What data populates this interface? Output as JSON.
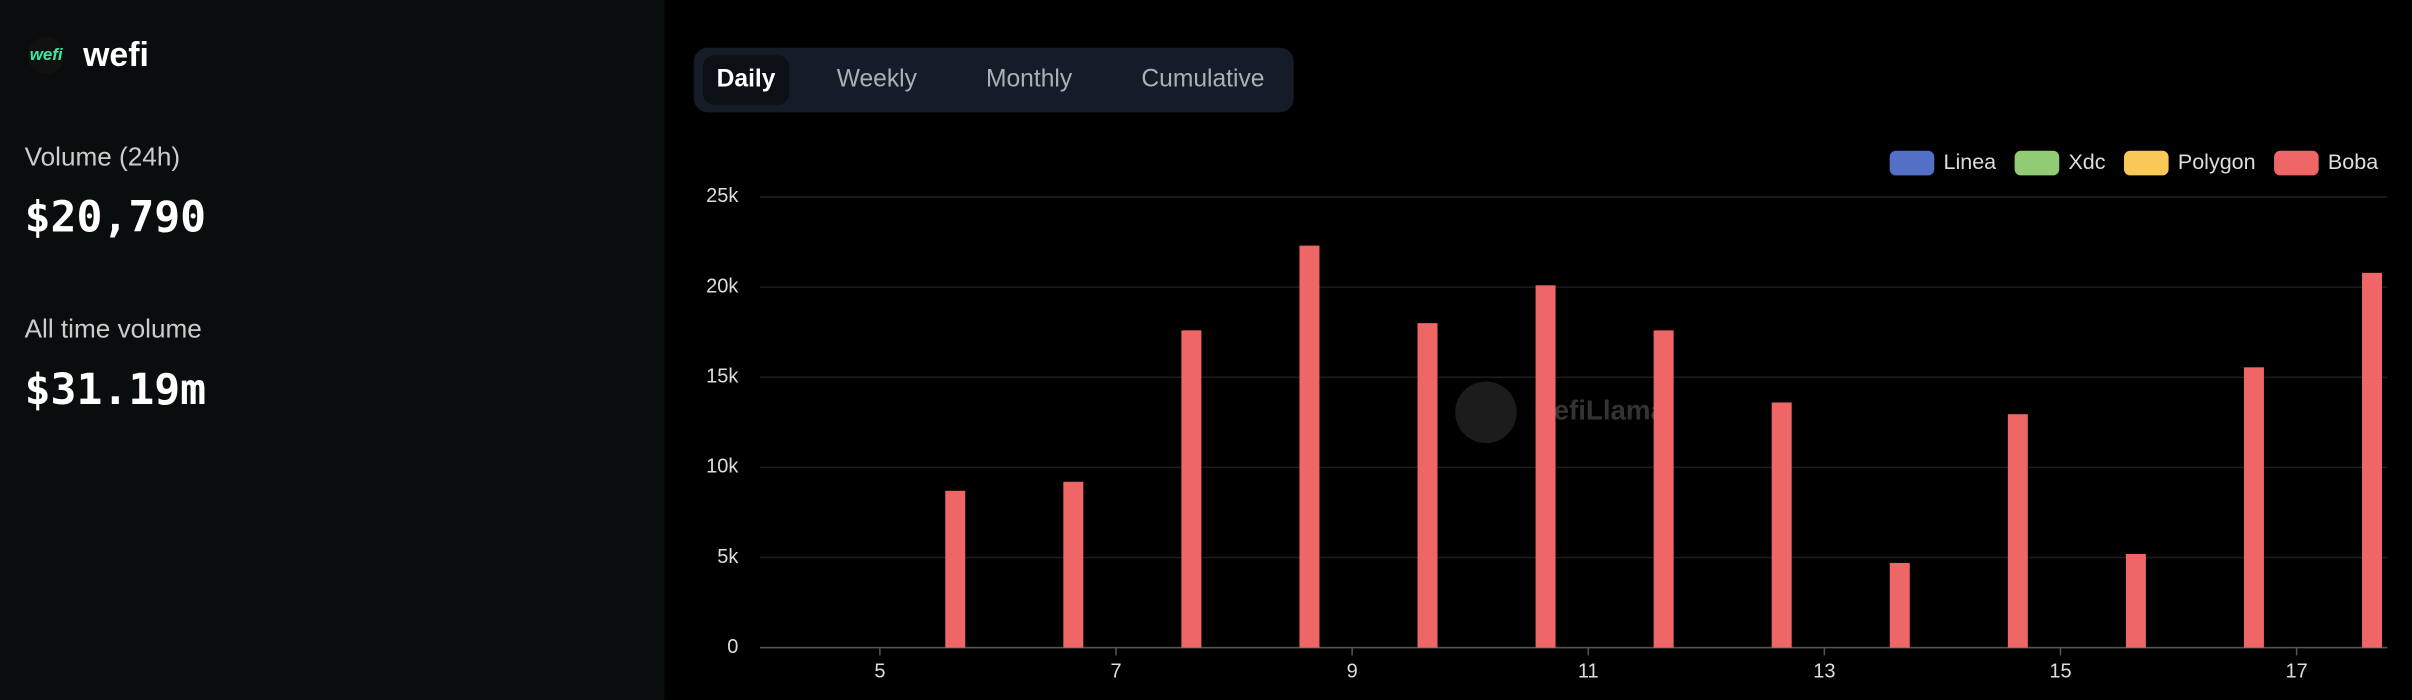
{
  "header": {
    "logo": "wefi",
    "title": "wefi"
  },
  "stats": [
    {
      "label": "Volume (24h)",
      "value": "$20,790"
    },
    {
      "label": "All time volume",
      "value": "$31.19m"
    }
  ],
  "tabs": [
    "Daily",
    "Weekly",
    "Monthly",
    "Cumulative"
  ],
  "chart_data": {
    "type": "bar",
    "watermark": "DefiLlama",
    "categories": [
      "5",
      null,
      "7",
      null,
      "9",
      null,
      "11",
      null,
      "13",
      null,
      "15",
      null,
      "17"
    ],
    "series": [
      {
        "name": "Linea",
        "color": "#5470c6",
        "values": [
          null,
          null,
          null,
          null,
          null,
          null,
          null,
          null,
          null,
          null,
          null,
          null,
          null
        ]
      },
      {
        "name": "Xdc",
        "color": "#91cc75",
        "values": [
          null,
          null,
          null,
          null,
          null,
          null,
          null,
          null,
          null,
          null,
          null,
          null,
          null
        ]
      },
      {
        "name": "Polygon",
        "color": "#fac858",
        "values": [
          null,
          null,
          null,
          null,
          null,
          null,
          null,
          null,
          null,
          null,
          null,
          null,
          null
        ]
      },
      {
        "name": "Boba",
        "color": "#ee6666",
        "values": [
          8700,
          9200,
          17600,
          22300,
          18000,
          20100,
          17600,
          13600,
          4700,
          12950,
          5200,
          15550,
          20790
        ]
      }
    ],
    "ylim": [
      0,
      25000
    ],
    "yticks": [
      0,
      {
        "value": 5000,
        "label": "5k"
      },
      {
        "value": 10000,
        "label": "10k"
      },
      {
        "value": 15000,
        "label": "15k"
      },
      {
        "value": 20000,
        "label": "20k"
      },
      {
        "value": 25000,
        "label": "25k"
      }
    ],
    "grid": true,
    "legend": "top-right"
  }
}
